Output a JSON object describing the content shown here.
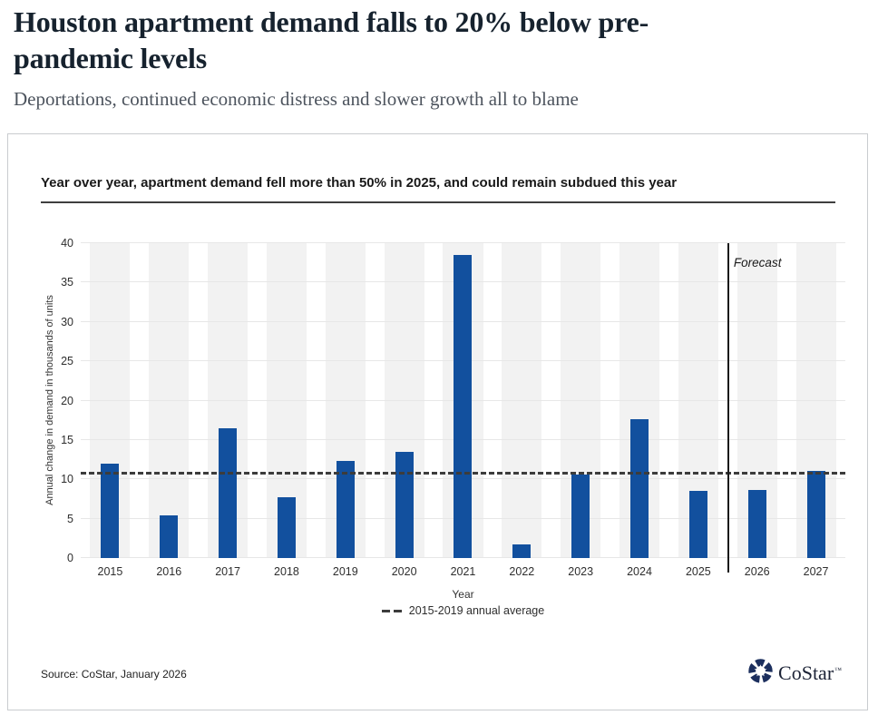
{
  "page": {
    "headline": "Houston apartment demand falls to 20% below pre-pandemic levels",
    "subtitle": "Deportations, continued economic distress and slower growth all to blame"
  },
  "card": {
    "source": "Source: CoStar, January 2026",
    "logo_text": "CoStar",
    "logo_tm": "™"
  },
  "chart_data": {
    "type": "bar",
    "title": "Year over year, apartment demand fell more than 50% in 2025, and could remain subdued this year",
    "categories": [
      "2015",
      "2016",
      "2017",
      "2018",
      "2019",
      "2020",
      "2021",
      "2022",
      "2023",
      "2024",
      "2025",
      "2026",
      "2027"
    ],
    "values": [
      12.0,
      5.4,
      16.5,
      7.7,
      12.3,
      13.5,
      38.5,
      1.7,
      10.6,
      17.6,
      8.5,
      8.6,
      11.1
    ],
    "xlabel": "Year",
    "ylabel": "Annual change in demand in thousands of units",
    "ylim": [
      0,
      40
    ],
    "ytick_step": 5,
    "grid": true,
    "legend_position": "bottom",
    "legend_label": "2015-2019 annual average",
    "average_line_value": 10.7,
    "average_line_style": "dashed",
    "forecast_label": "Forecast",
    "forecast_starts_at": "2026",
    "colors": {
      "bar": "#12509e",
      "band": "#f2f2f2",
      "gridline": "#e7e7e7",
      "dashed_line": "#3c3c3c",
      "forecast_line": "#1a1a1a"
    }
  }
}
